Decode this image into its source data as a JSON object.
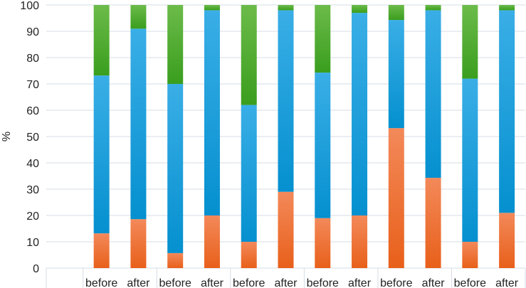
{
  "chart_data": {
    "type": "bar",
    "stacked": true,
    "title": "",
    "xlabel": "",
    "ylabel": "%",
    "ylim": [
      0,
      100
    ],
    "yticks": [
      0,
      10,
      20,
      30,
      40,
      50,
      60,
      70,
      80,
      90,
      100
    ],
    "grid": true,
    "legend": "none",
    "categories": [
      "",
      "before",
      "after",
      "before",
      "after",
      "before",
      "after",
      "before",
      "after",
      "before",
      "after",
      "before",
      "after"
    ],
    "series": [
      {
        "name": "orange",
        "color": "#f07030",
        "values": [
          null,
          13.2,
          18.6,
          5.7,
          20,
          10,
          29,
          19,
          20,
          53.2,
          34.3,
          10,
          21
        ]
      },
      {
        "name": "blue",
        "color": "#1a9ad6",
        "values": [
          null,
          60,
          72.4,
          64.3,
          78,
          52,
          69,
          55.3,
          77,
          41.1,
          63.7,
          62,
          77
        ]
      },
      {
        "name": "green",
        "color": "#4aaa2e",
        "values": [
          null,
          26.8,
          9,
          30,
          2,
          38,
          2,
          25.7,
          3,
          5.7,
          2,
          28,
          2
        ]
      }
    ]
  }
}
